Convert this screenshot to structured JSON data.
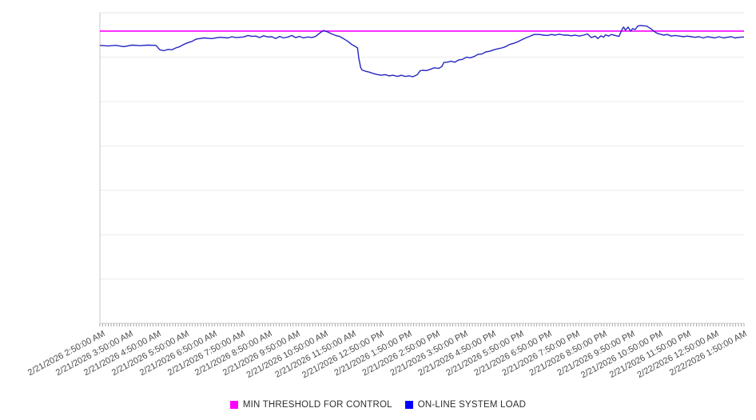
{
  "legend": {
    "items": [
      {
        "label": "MIN THRESHOLD FOR CONTROL",
        "color": "#ff00ff"
      },
      {
        "label": "ON-LINE SYSTEM LOAD",
        "color": "#0000ff"
      }
    ],
    "position": "bottom-center"
  },
  "chart_data": {
    "type": "line",
    "title": "",
    "xlabel": "",
    "ylabel": "",
    "x_labels": [
      "2/21/2026 2:50:00 AM",
      "2/21/2026 3:50:00 AM",
      "2/21/2026 4:50:00 AM",
      "2/21/2026 5:50:00 AM",
      "2/21/2026 6:50:00 AM",
      "2/21/2026 7:50:00 AM",
      "2/21/2026 8:50:00 AM",
      "2/21/2026 9:50:00 AM",
      "2/21/2026 10:50:00 AM",
      "2/21/2026 11:50:00 AM",
      "2/21/2026 12:50:00 PM",
      "2/21/2026 1:50:00 PM",
      "2/21/2026 2:50:00 PM",
      "2/21/2026 3:50:00 PM",
      "2/21/2026 4:50:00 PM",
      "2/21/2026 5:50:00 PM",
      "2/21/2026 6:50:00 PM",
      "2/21/2026 7:50:00 PM",
      "2/21/2026 8:50:00 PM",
      "2/21/2026 9:50:00 PM",
      "2/21/2026 10:50:00 PM",
      "2/21/2026 11:50:00 PM",
      "2/22/2026 12:50:00 AM",
      "2/22/2026 1:50:00 AM"
    ],
    "x_label_rotation_deg": -28,
    "x_minor_ticks_per_hour": 10,
    "y_axis": {
      "labels_visible": false,
      "ylim": [
        0,
        100
      ],
      "grid_divisions": 7,
      "grid_on": true
    },
    "threshold": {
      "name": "MIN THRESHOLD FOR CONTROL",
      "value": 94.1,
      "color": "#ff00ff"
    },
    "series": [
      {
        "name": "ON-LINE SYSTEM LOAD",
        "color": "#2525c4",
        "points": [
          [
            0.0,
            89.5
          ],
          [
            0.012,
            89.3
          ],
          [
            0.025,
            89.5
          ],
          [
            0.037,
            89.1
          ],
          [
            0.05,
            89.6
          ],
          [
            0.062,
            89.4
          ],
          [
            0.074,
            89.6
          ],
          [
            0.087,
            89.5
          ],
          [
            0.093,
            88.1
          ],
          [
            0.099,
            87.8
          ],
          [
            0.106,
            88.2
          ],
          [
            0.112,
            88.1
          ],
          [
            0.118,
            88.7
          ],
          [
            0.124,
            89.1
          ],
          [
            0.13,
            89.8
          ],
          [
            0.137,
            90.4
          ],
          [
            0.143,
            90.8
          ],
          [
            0.149,
            91.5
          ],
          [
            0.155,
            91.7
          ],
          [
            0.161,
            91.9
          ],
          [
            0.174,
            91.7
          ],
          [
            0.186,
            92.1
          ],
          [
            0.199,
            91.9
          ],
          [
            0.205,
            92.3
          ],
          [
            0.211,
            92.0
          ],
          [
            0.223,
            92.2
          ],
          [
            0.23,
            92.7
          ],
          [
            0.236,
            92.4
          ],
          [
            0.242,
            92.5
          ],
          [
            0.248,
            92.0
          ],
          [
            0.254,
            92.6
          ],
          [
            0.261,
            92.2
          ],
          [
            0.267,
            92.3
          ],
          [
            0.273,
            91.7
          ],
          [
            0.279,
            92.4
          ],
          [
            0.285,
            91.9
          ],
          [
            0.292,
            92.2
          ],
          [
            0.298,
            92.7
          ],
          [
            0.304,
            92.0
          ],
          [
            0.31,
            92.4
          ],
          [
            0.316,
            91.9
          ],
          [
            0.323,
            92.2
          ],
          [
            0.329,
            92.0
          ],
          [
            0.335,
            92.4
          ],
          [
            0.341,
            93.4
          ],
          [
            0.347,
            94.3
          ],
          [
            0.354,
            93.8
          ],
          [
            0.36,
            93.2
          ],
          [
            0.366,
            92.7
          ],
          [
            0.372,
            92.4
          ],
          [
            0.378,
            91.7
          ],
          [
            0.385,
            90.8
          ],
          [
            0.391,
            89.8
          ],
          [
            0.397,
            89.1
          ],
          [
            0.4,
            88.7
          ],
          [
            0.402,
            85.3
          ],
          [
            0.405,
            82.3
          ],
          [
            0.407,
            81.6
          ],
          [
            0.412,
            81.2
          ],
          [
            0.418,
            80.9
          ],
          [
            0.424,
            80.5
          ],
          [
            0.431,
            80.1
          ],
          [
            0.437,
            79.9
          ],
          [
            0.443,
            80.1
          ],
          [
            0.449,
            79.7
          ],
          [
            0.455,
            79.9
          ],
          [
            0.462,
            79.5
          ],
          [
            0.468,
            79.9
          ],
          [
            0.474,
            79.5
          ],
          [
            0.48,
            79.7
          ],
          [
            0.486,
            79.4
          ],
          [
            0.493,
            80.1
          ],
          [
            0.497,
            81.3
          ],
          [
            0.501,
            81.5
          ],
          [
            0.507,
            81.4
          ],
          [
            0.513,
            81.8
          ],
          [
            0.519,
            82.3
          ],
          [
            0.526,
            82.1
          ],
          [
            0.531,
            82.7
          ],
          [
            0.534,
            84.0
          ],
          [
            0.539,
            84.1
          ],
          [
            0.545,
            84.4
          ],
          [
            0.551,
            84.1
          ],
          [
            0.557,
            84.8
          ],
          [
            0.563,
            85.0
          ],
          [
            0.569,
            85.7
          ],
          [
            0.575,
            85.5
          ],
          [
            0.581,
            85.9
          ],
          [
            0.587,
            86.6
          ],
          [
            0.593,
            86.7
          ],
          [
            0.599,
            87.4
          ],
          [
            0.605,
            87.6
          ],
          [
            0.612,
            88.1
          ],
          [
            0.618,
            88.4
          ],
          [
            0.624,
            88.7
          ],
          [
            0.63,
            89.1
          ],
          [
            0.636,
            89.8
          ],
          [
            0.643,
            90.2
          ],
          [
            0.649,
            90.7
          ],
          [
            0.655,
            91.3
          ],
          [
            0.661,
            91.9
          ],
          [
            0.667,
            92.4
          ],
          [
            0.674,
            93.0
          ],
          [
            0.682,
            93.0
          ],
          [
            0.689,
            92.8
          ],
          [
            0.695,
            92.7
          ],
          [
            0.701,
            93.0
          ],
          [
            0.707,
            92.8
          ],
          [
            0.713,
            93.1
          ],
          [
            0.72,
            92.8
          ],
          [
            0.726,
            92.8
          ],
          [
            0.732,
            92.6
          ],
          [
            0.738,
            92.8
          ],
          [
            0.744,
            92.5
          ],
          [
            0.751,
            92.8
          ],
          [
            0.757,
            93.2
          ],
          [
            0.763,
            92.0
          ],
          [
            0.769,
            92.5
          ],
          [
            0.773,
            91.7
          ],
          [
            0.778,
            92.6
          ],
          [
            0.782,
            92.1
          ],
          [
            0.785,
            92.9
          ],
          [
            0.79,
            92.5
          ],
          [
            0.794,
            93.0
          ],
          [
            0.8,
            92.7
          ],
          [
            0.806,
            92.4
          ],
          [
            0.81,
            94.4
          ],
          [
            0.813,
            95.4
          ],
          [
            0.816,
            94.4
          ],
          [
            0.82,
            95.4
          ],
          [
            0.824,
            94.1
          ],
          [
            0.827,
            94.9
          ],
          [
            0.831,
            94.6
          ],
          [
            0.835,
            95.7
          ],
          [
            0.839,
            95.9
          ],
          [
            0.844,
            95.8
          ],
          [
            0.849,
            95.7
          ],
          [
            0.852,
            95.3
          ],
          [
            0.856,
            94.8
          ],
          [
            0.86,
            94.1
          ],
          [
            0.865,
            93.4
          ],
          [
            0.87,
            93.1
          ],
          [
            0.875,
            92.8
          ],
          [
            0.881,
            93.0
          ],
          [
            0.887,
            92.5
          ],
          [
            0.893,
            92.7
          ],
          [
            0.9,
            92.5
          ],
          [
            0.906,
            92.3
          ],
          [
            0.912,
            92.5
          ],
          [
            0.918,
            92.3
          ],
          [
            0.924,
            92.1
          ],
          [
            0.93,
            92.3
          ],
          [
            0.937,
            91.9
          ],
          [
            0.943,
            92.3
          ],
          [
            0.949,
            92.1
          ],
          [
            0.955,
            91.9
          ],
          [
            0.961,
            92.3
          ],
          [
            0.968,
            91.9
          ],
          [
            0.974,
            92.1
          ],
          [
            0.98,
            92.3
          ],
          [
            0.986,
            91.9
          ],
          [
            0.993,
            92.1
          ],
          [
            1.0,
            92.2
          ]
        ]
      }
    ],
    "legend_position": "bottom-center"
  }
}
